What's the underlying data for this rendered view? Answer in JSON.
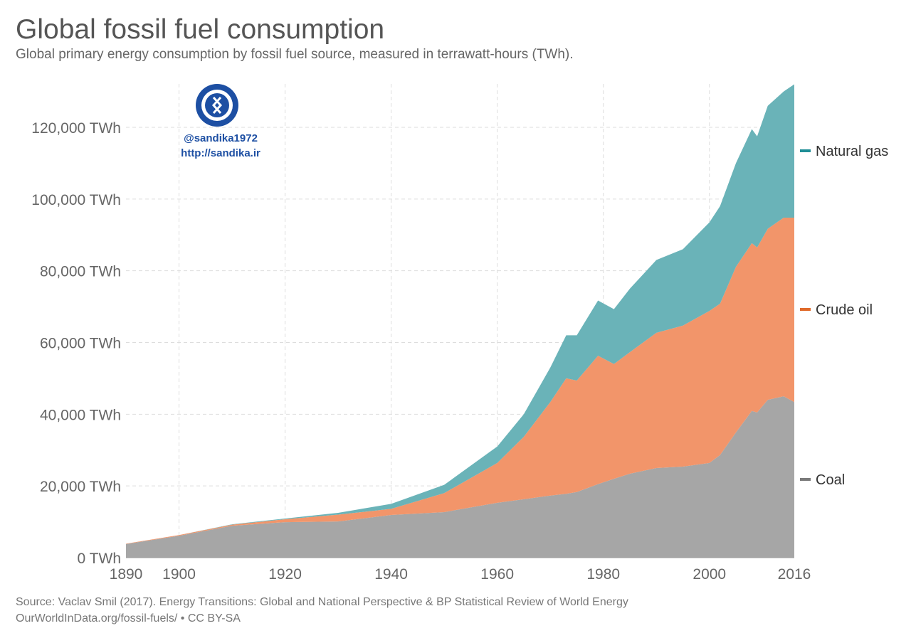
{
  "chart_data": {
    "type": "area",
    "stacked": true,
    "title": "Global fossil fuel consumption",
    "subtitle": "Global primary energy consumption by fossil fuel source, measured in terrawatt-hours (TWh).",
    "xlabel": "",
    "ylabel": "",
    "ylim": [
      0,
      132000
    ],
    "xlim": [
      1890,
      2016
    ],
    "grid": true,
    "legend_position": "right",
    "y_ticks": [
      0,
      20000,
      40000,
      60000,
      80000,
      100000,
      120000
    ],
    "y_tick_labels": [
      "0 TWh",
      "20,000 TWh",
      "40,000 TWh",
      "60,000 TWh",
      "80,000 TWh",
      "100,000 TWh",
      "120,000 TWh"
    ],
    "x_ticks": [
      1890,
      1900,
      1920,
      1940,
      1960,
      1980,
      2000,
      2016
    ],
    "x_tick_labels": [
      "1890",
      "1900",
      "1920",
      "1940",
      "1960",
      "1980",
      "2000",
      "2016"
    ],
    "x": [
      1890,
      1900,
      1910,
      1920,
      1930,
      1940,
      1950,
      1960,
      1965,
      1970,
      1973,
      1975,
      1979,
      1982,
      1985,
      1990,
      1995,
      2000,
      2002,
      2005,
      2008,
      2009,
      2011,
      2014,
      2016
    ],
    "series": [
      {
        "name": "Coal",
        "color": "#a6a6a6",
        "legend_color": "#7a7a7a",
        "values": [
          3800,
          6100,
          8900,
          9900,
          10100,
          11900,
          12700,
          15300,
          16300,
          17300,
          17800,
          18300,
          20500,
          22000,
          23400,
          25000,
          25400,
          26400,
          28600,
          34900,
          40900,
          40500,
          44000,
          45000,
          43400
        ]
      },
      {
        "name": "Crude oil",
        "color": "#f2956a",
        "legend_color": "#e06a2a",
        "values": [
          100,
          200,
          300,
          800,
          1900,
          1700,
          5300,
          11100,
          17400,
          26100,
          32200,
          31100,
          35800,
          32000,
          33900,
          37700,
          39300,
          42400,
          42200,
          46200,
          46800,
          46000,
          47700,
          49800,
          51400
        ]
      },
      {
        "name": "Natural gas",
        "color": "#6ab3b8",
        "legend_color": "#1f8e96",
        "values": [
          0,
          0,
          100,
          200,
          500,
          1400,
          2300,
          4600,
          6300,
          9600,
          12000,
          12600,
          15400,
          15300,
          17700,
          20300,
          21300,
          24700,
          27200,
          28900,
          31800,
          31000,
          34300,
          35200,
          37200
        ]
      }
    ]
  },
  "watermark": {
    "handle": "@sandika1972",
    "url": "http://sandika.ir"
  },
  "source_line": "Source: Vaclav Smil (2017). Energy Transitions: Global and National Perspective & BP Statistical Review of World Energy",
  "license_line": "OurWorldInData.org/fossil-fuels/ • CC BY-SA"
}
